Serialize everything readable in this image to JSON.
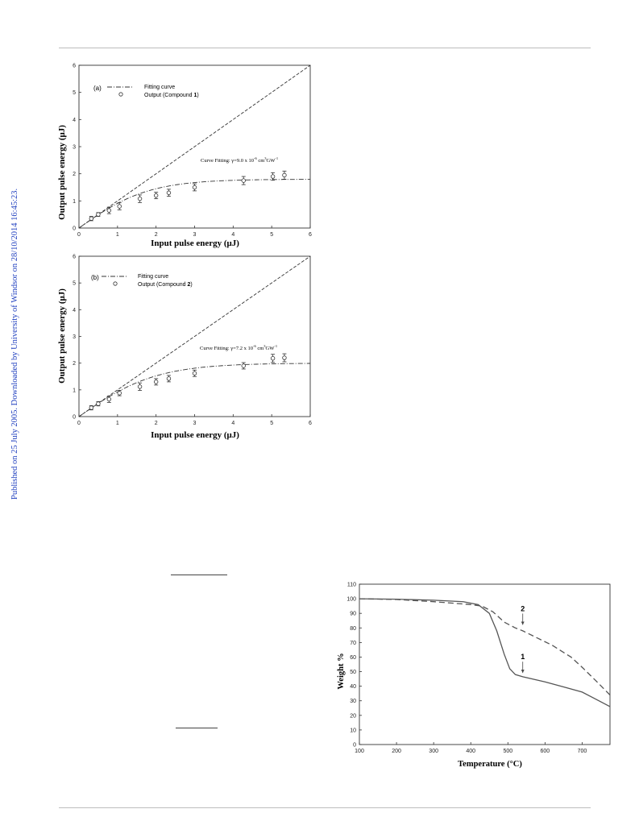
{
  "page": {
    "sidebar_text": "Published on 25 July 2005. Downloaded by University of Windsor on 28/10/2014 16:45:23."
  },
  "figure_a": {
    "panel_label": "(a)",
    "legend": {
      "fit_label": "Fitting curve",
      "output_prefix": "Output (Compound ",
      "compound": "1",
      "output_suffix": ")"
    },
    "annotation": "Curve Fitting: γ=9.0 x 10",
    "annotation_exp": "-6",
    "annotation_unit": " cm",
    "annotation_unit2": "3",
    "annotation_unit3": "GW",
    "annotation_unit4": "-1"
  },
  "figure_b": {
    "panel_label": "(b)",
    "legend": {
      "fit_label": "Fitting curve",
      "output_prefix": "Output (Compound ",
      "compound": "2",
      "output_suffix": ")"
    },
    "annotation": "Curve Fitting: γ=7.2 x 10",
    "annotation_exp": "-6",
    "annotation_unit": " cm",
    "annotation_unit2": "3",
    "annotation_unit3": "GW",
    "annotation_unit4": "-1"
  },
  "figure_tga": {
    "curve_label_1": "1",
    "curve_label_2": "2"
  },
  "chart_data": [
    {
      "type": "scatter",
      "id": "optical-limiting-a",
      "xlabel": "Input pulse energy (μJ)",
      "ylabel": "Output pulse energy (μJ)",
      "xlim": [
        0,
        6
      ],
      "ylim": [
        0,
        6
      ],
      "xticks": [
        "0",
        "1",
        "2",
        "3",
        "4",
        "5",
        "6"
      ],
      "yticks": [
        "0",
        "1",
        "2",
        "3",
        "4",
        "5",
        "6"
      ],
      "series": [
        {
          "name": "Output (Compound 1)",
          "x": [
            0.32,
            0.5,
            0.78,
            1.05,
            1.58,
            2.0,
            2.33,
            3.0,
            4.27,
            5.03,
            5.33
          ],
          "y": [
            0.35,
            0.5,
            0.65,
            0.8,
            1.08,
            1.2,
            1.3,
            1.5,
            1.75,
            1.9,
            1.95
          ],
          "err": [
            0.08,
            0.07,
            0.12,
            0.13,
            0.14,
            0.12,
            0.13,
            0.13,
            0.15,
            0.14,
            0.15
          ]
        },
        {
          "name": "Fitting curve",
          "saturation": 1.8
        }
      ],
      "grid": false,
      "legend_position": "top-left"
    },
    {
      "type": "scatter",
      "id": "optical-limiting-b",
      "xlabel": "Input pulse energy (μJ)",
      "ylabel": "Output pulse energy (μJ)",
      "xlim": [
        0,
        6
      ],
      "ylim": [
        0,
        6
      ],
      "xticks": [
        "0",
        "1",
        "2",
        "3",
        "4",
        "5",
        "6"
      ],
      "yticks": [
        "0",
        "1",
        "2",
        "3",
        "4",
        "5",
        "6"
      ],
      "series": [
        {
          "name": "Output (Compound 2)",
          "x": [
            0.32,
            0.5,
            0.78,
            1.05,
            1.58,
            2.0,
            2.33,
            3.0,
            4.27,
            5.03,
            5.33
          ],
          "y": [
            0.33,
            0.48,
            0.65,
            0.88,
            1.12,
            1.3,
            1.42,
            1.62,
            1.9,
            2.18,
            2.2
          ],
          "err": [
            0.08,
            0.08,
            0.12,
            0.1,
            0.14,
            0.12,
            0.12,
            0.12,
            0.12,
            0.15,
            0.15
          ]
        },
        {
          "name": "Fitting curve",
          "saturation": 2.0
        }
      ],
      "grid": false,
      "legend_position": "top-left"
    },
    {
      "type": "line",
      "id": "tga",
      "xlabel": "Temperature (°C)",
      "ylabel": "Weight %",
      "xlim": [
        100,
        775
      ],
      "ylim": [
        0,
        110
      ],
      "xticks": [
        "100",
        "200",
        "300",
        "400",
        "500",
        "600",
        "700"
      ],
      "yticks": [
        "0",
        "10",
        "20",
        "30",
        "40",
        "50",
        "60",
        "70",
        "80",
        "90",
        "100",
        "110"
      ],
      "series": [
        {
          "name": "1",
          "style": "solid",
          "x": [
            100,
            200,
            300,
            380,
            420,
            450,
            470,
            490,
            505,
            520,
            540,
            600,
            650,
            700,
            730,
            775
          ],
          "y": [
            100,
            99.7,
            99,
            98,
            96,
            90,
            78,
            62,
            52,
            48,
            46.5,
            43,
            39.5,
            36,
            32,
            26
          ]
        },
        {
          "name": "2",
          "style": "dashed",
          "x": [
            100,
            200,
            300,
            400,
            430,
            460,
            490,
            520,
            540,
            580,
            620,
            670,
            700,
            740,
            775
          ],
          "y": [
            100,
            99.5,
            98,
            96,
            95,
            91,
            84,
            80,
            78,
            73,
            68,
            60,
            53,
            43,
            34
          ]
        }
      ],
      "annotations": [
        {
          "text": "2",
          "x": 540,
          "y": 81
        },
        {
          "text": "1",
          "x": 540,
          "y": 48
        }
      ],
      "grid": false
    }
  ]
}
